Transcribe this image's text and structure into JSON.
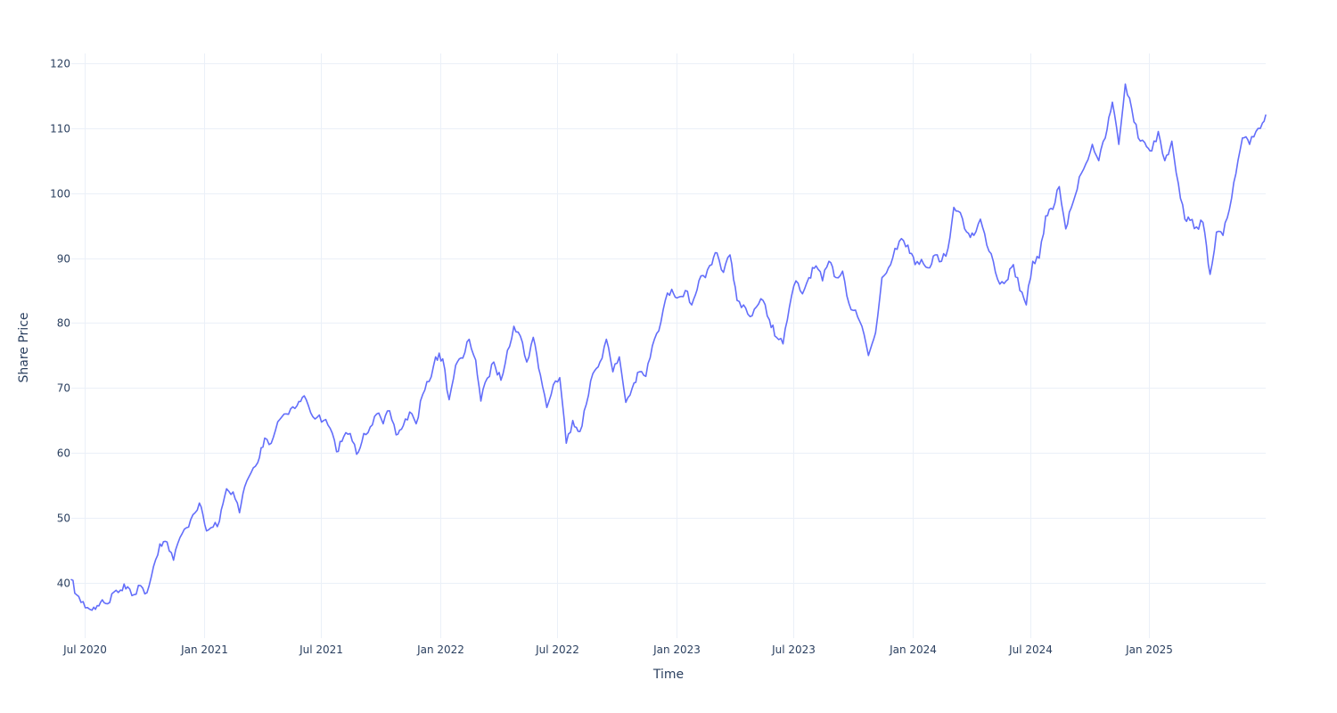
{
  "chart_data": {
    "type": "line",
    "title": "",
    "xlabel": "Time",
    "ylabel": "Share Price",
    "x_range": [
      "2020-06-10",
      "2025-06-30"
    ],
    "ylim": [
      31.5,
      121.5
    ],
    "grid": true,
    "legend": "none",
    "colors": {
      "line": "#636efa",
      "grid": "#ebf0f8",
      "text": "#2a3f5f",
      "background": "#ffffff"
    },
    "x_ticks": [
      {
        "date": "2020-07-01",
        "label": "Jul 2020"
      },
      {
        "date": "2021-01-01",
        "label": "Jan 2021"
      },
      {
        "date": "2021-07-01",
        "label": "Jul 2021"
      },
      {
        "date": "2022-01-01",
        "label": "Jan 2022"
      },
      {
        "date": "2022-07-01",
        "label": "Jul 2022"
      },
      {
        "date": "2023-01-01",
        "label": "Jan 2023"
      },
      {
        "date": "2023-07-01",
        "label": "Jul 2023"
      },
      {
        "date": "2024-01-01",
        "label": "Jan 2024"
      },
      {
        "date": "2024-07-01",
        "label": "Jul 2024"
      },
      {
        "date": "2025-01-01",
        "label": "Jan 2025"
      }
    ],
    "y_ticks": [
      {
        "value": 40,
        "label": "40"
      },
      {
        "value": 50,
        "label": "50"
      },
      {
        "value": 60,
        "label": "60"
      },
      {
        "value": 70,
        "label": "70"
      },
      {
        "value": 80,
        "label": "80"
      },
      {
        "value": 90,
        "label": "90"
      },
      {
        "value": 100,
        "label": "100"
      },
      {
        "value": 110,
        "label": "110"
      },
      {
        "value": 120,
        "label": "120"
      }
    ],
    "series": [
      {
        "x": [
          "2020-06-10",
          "2020-06-18",
          "2020-06-25",
          "2020-07-05",
          "2020-07-12",
          "2020-07-20",
          "2020-07-28",
          "2020-08-05",
          "2020-08-15",
          "2020-08-25",
          "2020-09-05",
          "2020-09-15",
          "2020-09-25",
          "2020-10-05",
          "2020-10-15",
          "2020-10-25",
          "2020-11-05",
          "2020-11-15",
          "2020-11-25",
          "2020-12-05",
          "2020-12-15",
          "2020-12-25",
          "2021-01-05",
          "2021-01-15",
          "2021-01-25",
          "2021-02-05",
          "2021-02-15",
          "2021-02-25",
          "2021-03-05",
          "2021-03-15",
          "2021-03-25",
          "2021-04-05",
          "2021-04-15",
          "2021-04-25",
          "2021-05-05",
          "2021-05-15",
          "2021-05-25",
          "2021-06-05",
          "2021-06-15",
          "2021-06-25",
          "2021-07-05",
          "2021-07-15",
          "2021-07-25",
          "2021-08-05",
          "2021-08-15",
          "2021-08-25",
          "2021-09-05",
          "2021-09-15",
          "2021-09-25",
          "2021-10-05",
          "2021-10-15",
          "2021-10-25",
          "2021-11-05",
          "2021-11-15",
          "2021-11-25",
          "2021-12-05",
          "2021-12-15",
          "2021-12-25",
          "2022-01-05",
          "2022-01-15",
          "2022-01-25",
          "2022-02-05",
          "2022-02-15",
          "2022-02-25",
          "2022-03-05",
          "2022-03-15",
          "2022-03-25",
          "2022-04-05",
          "2022-04-15",
          "2022-04-25",
          "2022-05-05",
          "2022-05-15",
          "2022-05-25",
          "2022-06-05",
          "2022-06-15",
          "2022-06-25",
          "2022-07-05",
          "2022-07-15",
          "2022-07-25",
          "2022-08-05",
          "2022-08-15",
          "2022-08-25",
          "2022-09-05",
          "2022-09-15",
          "2022-09-25",
          "2022-10-05",
          "2022-10-15",
          "2022-10-25",
          "2022-11-05",
          "2022-11-15",
          "2022-11-25",
          "2022-12-05",
          "2022-12-15",
          "2022-12-25",
          "2023-01-05",
          "2023-01-15",
          "2023-01-25",
          "2023-02-05",
          "2023-02-15",
          "2023-02-25",
          "2023-03-05",
          "2023-03-15",
          "2023-03-25",
          "2023-04-05",
          "2023-04-15",
          "2023-04-25",
          "2023-05-05",
          "2023-05-15",
          "2023-05-25",
          "2023-06-05",
          "2023-06-15",
          "2023-06-25",
          "2023-07-05",
          "2023-07-15",
          "2023-07-25",
          "2023-08-05",
          "2023-08-15",
          "2023-08-25",
          "2023-09-05",
          "2023-09-15",
          "2023-09-25",
          "2023-10-05",
          "2023-10-15",
          "2023-10-25",
          "2023-11-05",
          "2023-11-15",
          "2023-11-25",
          "2023-12-05",
          "2023-12-15",
          "2023-12-25",
          "2024-01-05",
          "2024-01-15",
          "2024-01-25",
          "2024-02-05",
          "2024-02-15",
          "2024-02-25",
          "2024-03-05",
          "2024-03-15",
          "2024-03-25",
          "2024-04-05",
          "2024-04-15",
          "2024-04-25",
          "2024-05-05",
          "2024-05-15",
          "2024-05-25",
          "2024-06-05",
          "2024-06-15",
          "2024-06-25",
          "2024-07-05",
          "2024-07-15",
          "2024-07-25",
          "2024-08-05",
          "2024-08-15",
          "2024-08-25",
          "2024-09-05",
          "2024-09-15",
          "2024-09-25",
          "2024-10-05",
          "2024-10-15",
          "2024-10-25",
          "2024-11-05",
          "2024-11-15",
          "2024-11-25",
          "2024-12-05",
          "2024-12-15",
          "2024-12-25",
          "2025-01-05",
          "2025-01-15",
          "2025-01-25",
          "2025-02-05",
          "2025-02-15",
          "2025-02-25",
          "2025-03-05",
          "2025-03-15",
          "2025-03-25",
          "2025-04-05",
          "2025-04-15",
          "2025-04-25",
          "2025-05-05",
          "2025-05-15",
          "2025-05-25",
          "2025-06-05",
          "2025-06-15",
          "2025-06-25",
          "2025-06-30"
        ],
        "y": [
          40.5,
          38.2,
          37.0,
          36.2,
          35.8,
          36.5,
          37.4,
          36.8,
          38.6,
          38.9,
          39.4,
          38.2,
          39.6,
          38.5,
          42.5,
          46.0,
          46.3,
          43.5,
          47.0,
          48.5,
          50.5,
          52.3,
          48.0,
          48.6,
          49.5,
          54.5,
          54.0,
          50.8,
          54.8,
          57.0,
          58.5,
          62.3,
          61.5,
          64.8,
          66.0,
          66.8,
          67.3,
          68.8,
          66.2,
          65.5,
          65.0,
          63.8,
          60.2,
          62.5,
          63.0,
          59.8,
          63.0,
          64.0,
          66.0,
          64.5,
          66.5,
          62.8,
          64.2,
          66.3,
          64.5,
          69.0,
          71.0,
          74.8,
          74.5,
          68.2,
          73.5,
          74.6,
          77.5,
          74.3,
          68.0,
          71.5,
          74.0,
          71.2,
          75.8,
          79.5,
          78.0,
          74.0,
          77.8,
          72.0,
          67.0,
          70.5,
          71.6,
          61.5,
          65.0,
          63.3,
          67.5,
          72.2,
          74.0,
          77.5,
          72.5,
          74.8,
          67.8,
          70.0,
          72.5,
          71.8,
          76.5,
          78.8,
          83.5,
          85.2,
          84.0,
          85.0,
          82.8,
          86.5,
          87.0,
          89.0,
          90.8,
          87.8,
          90.5,
          83.5,
          82.8,
          81.0,
          82.5,
          83.5,
          80.5,
          77.8,
          76.8,
          82.5,
          86.5,
          84.5,
          87.0,
          88.8,
          86.5,
          89.5,
          87.0,
          88.0,
          83.0,
          82.0,
          79.5,
          75.0,
          78.5,
          87.0,
          88.5,
          91.5,
          93.0,
          92.0,
          89.0,
          89.8,
          88.5,
          90.5,
          89.5,
          91.5,
          97.8,
          97.0,
          94.0,
          93.5,
          96.0,
          92.0,
          89.5,
          86.0,
          86.5,
          89.0,
          85.0,
          82.8,
          89.5,
          90.0,
          96.5,
          97.5,
          101.0,
          94.5,
          98.5,
          102.5,
          104.5,
          107.5,
          105.0,
          108.5,
          114.0,
          107.5,
          116.8,
          113.0,
          108.5,
          107.8,
          106.5,
          109.5,
          105.0,
          108.0,
          101.5,
          96.0,
          95.8,
          94.8,
          95.5,
          87.5,
          94.0,
          93.5,
          97.5,
          103.0,
          108.5,
          107.5,
          109.5,
          110.8,
          112.0
        ]
      }
    ]
  }
}
